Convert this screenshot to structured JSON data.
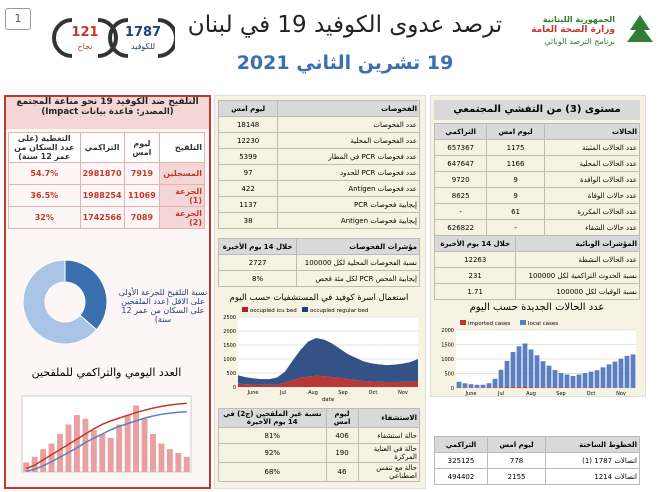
{
  "header": {
    "page_number": "1",
    "title": "ترصد عدوى الكوفيد 19 في لبنان",
    "date": "19 تشرين الثاني 2021",
    "logo_lines": [
      "الجمهورية اللبنانية",
      "وزارة الصحة العامة",
      "برنامج الترصد الوبائي"
    ],
    "badges": [
      {
        "value": "121",
        "label": "نجاح"
      },
      {
        "value": "1787",
        "label": "للكوفيد"
      }
    ]
  },
  "vaccination": {
    "title": "التلقيح ضد الكوفيد 19 نحو مناعة المجتمع",
    "source": "(المصدر: قاعدة بيانات Impact)",
    "table": {
      "columns": [
        "التلقيح",
        "ليوم امس",
        "التراكمي",
        "التغطية (على عدد السكان من عمر 12 سنة)"
      ],
      "rows": [
        [
          "المسجلين",
          "7919",
          "2981870",
          "54.7%"
        ],
        [
          "الجرعة (1)",
          "11069",
          "1988254",
          "36.5%"
        ],
        [
          "الجرعة (2)",
          "7089",
          "1742566",
          "32%"
        ]
      ]
    },
    "donut": {
      "type": "pie",
      "values": [
        36.5,
        63.5
      ],
      "colors": [
        "#3a6fb0",
        "#a9c4e4"
      ]
    },
    "donut_caption": "نسبة التلقيح للجرعة الأولى على الاقل (عدد الملقحين على السكان من عمر 12 سنة)",
    "chart_title": "العدد اليومي والتراكمي للملقحين",
    "chart": {
      "type": "bar-line",
      "ylim": [
        0,
        40000
      ],
      "y2lim": [
        0,
        2200000
      ],
      "bars": {
        "color": "#e8a0a0",
        "values": [
          5000,
          8000,
          12000,
          15000,
          20000,
          25000,
          30000,
          28000,
          22000,
          20000,
          18000,
          25000,
          30000,
          35000,
          28000,
          20000,
          15000,
          12000,
          10000,
          8000
        ]
      },
      "lines": [
        {
          "color": "#c0392b",
          "values": [
            100000,
            200000,
            350000,
            500000,
            650000,
            800000,
            950000,
            1100000,
            1250000,
            1380000,
            1480000,
            1560000,
            1640000,
            1720000,
            1790000,
            1850000,
            1900000,
            1940000,
            1970000,
            1988254
          ]
        },
        {
          "color": "#5b7fc0",
          "values": [
            20000,
            80000,
            180000,
            300000,
            430000,
            560000,
            700000,
            850000,
            980000,
            1100000,
            1220000,
            1320000,
            1400000,
            1480000,
            1560000,
            1620000,
            1670000,
            1705000,
            1730000,
            1742566
          ]
        }
      ]
    }
  },
  "tests": {
    "columns": [
      "الفحوصات",
      "ليوم امس"
    ],
    "rows": [
      [
        "عدد الفحوصات",
        "18148"
      ],
      [
        "عدد الفحوصات المحلية",
        "12230"
      ],
      [
        "عدد فحوصات PCR في المطار",
        "5399"
      ],
      [
        "عدد فحوصات PCR للحدود",
        "97"
      ],
      [
        "عدد فحوصات Antigen",
        "422"
      ],
      [
        "إيجابية فحوصات PCR",
        "1137"
      ],
      [
        "إيجابية فحوصات Antigen",
        "38"
      ]
    ]
  },
  "test_indicators": {
    "columns": [
      "مؤشرات الفحوصات",
      "خلال 14 يوم الأخيرة"
    ],
    "rows": [
      [
        "نسبة الفحوصات المحلية لكل 100000",
        "2727"
      ],
      [
        "إيجابية الفحص PCR لكل مئة فحص",
        "8%"
      ]
    ]
  },
  "hospital_chart": {
    "type": "stacked-area",
    "title": "استعمال اسرة كوفيد في المستشفيات حسب اليوم",
    "x_labels": [
      "June",
      "Jul",
      "Aug",
      "Sep",
      "Oct",
      "Nov"
    ],
    "x_label": "date",
    "ylim": [
      0,
      2500
    ],
    "yticks": [
      0,
      500,
      1000,
      1500,
      2000,
      2500
    ],
    "series": [
      {
        "name": "occupied icu bed",
        "color": "#b22222",
        "values": [
          120,
          100,
          90,
          80,
          80,
          90,
          150,
          250,
          330,
          380,
          400,
          390,
          360,
          320,
          280,
          250,
          220,
          200,
          190,
          180,
          180,
          185,
          190,
          200
        ]
      },
      {
        "name": "occupied regular bed",
        "color": "#1f3f7a",
        "values": [
          300,
          250,
          220,
          200,
          200,
          250,
          400,
          700,
          1000,
          1250,
          1350,
          1300,
          1200,
          1050,
          900,
          800,
          700,
          650,
          620,
          600,
          620,
          650,
          700,
          800
        ]
      }
    ]
  },
  "hospitalization": {
    "columns": [
      "الاستشفاء",
      "ليوم امس",
      "نسبة غير الملقحين (ج2) في 14 يوم الأخيرة"
    ],
    "rows": [
      [
        "حالة استشفاء",
        "406",
        "81%"
      ],
      [
        "حالة في العناية المركزة",
        "190",
        "92%"
      ],
      [
        "حالة مع تنفس اصطناعي",
        "46",
        "68%"
      ]
    ]
  },
  "outbreak": {
    "title": "مستوى (3) من التفشي المجتمعي",
    "cases": {
      "columns": [
        "الحالات",
        "ليوم امس",
        "التراكمي"
      ],
      "rows": [
        [
          "عدد الحالات المثبتة",
          "1175",
          "657367"
        ],
        [
          "عدد الحالات المحلية",
          "1166",
          "647647"
        ],
        [
          "عدد الحالات الوافدة",
          "9",
          "9720"
        ],
        [
          "عدد حالات الوفاة",
          "9",
          "8625"
        ],
        [
          "عدد الحالات المكررة",
          "61",
          "-"
        ],
        [
          "عدد حالات الشفاء",
          "-",
          "626822"
        ]
      ]
    },
    "indicators": {
      "columns": [
        "المؤشرات الوبائية",
        "خلال 14 يوم الأخيرة"
      ],
      "rows": [
        [
          "عدد الحالات النشطة",
          "12263"
        ],
        [
          "نسبة الحدوث التراكمية لكل 100000",
          "231"
        ],
        [
          "نسبة الوفيات لكل 100000",
          "1.71"
        ]
      ]
    }
  },
  "cases_chart": {
    "type": "stacked-bar",
    "title": "عدد الحالات الجديدة حسب اليوم",
    "x_labels": [
      "June",
      "Jul",
      "Aug",
      "Sep",
      "Oct",
      "Nov"
    ],
    "ylim": [
      0,
      2000
    ],
    "yticks": [
      0,
      500,
      1000,
      1500,
      2000
    ],
    "series": [
      {
        "name": "imported cases",
        "color": "#c0392b",
        "values": [
          15,
          12,
          10,
          10,
          12,
          15,
          20,
          30,
          35,
          40,
          40,
          35,
          30,
          28,
          25,
          22,
          20,
          18,
          16,
          15,
          15,
          14,
          14,
          13,
          12,
          12,
          11,
          10,
          10,
          9
        ]
      },
      {
        "name": "local cases",
        "color": "#5b7fc0",
        "values": [
          200,
          150,
          120,
          100,
          100,
          150,
          300,
          600,
          900,
          1200,
          1400,
          1500,
          1300,
          1100,
          900,
          750,
          600,
          500,
          450,
          400,
          450,
          500,
          550,
          600,
          700,
          800,
          900,
          1000,
          1100,
          1150
        ]
      }
    ]
  },
  "hotlines": {
    "columns": [
      "الخطوط الساخنة",
      "ليوم امس",
      "التراكمي"
    ],
    "rows": [
      [
        "اتصالات 1787 (1)",
        "778",
        "325125"
      ],
      [
        "اتصالات 1214",
        "2155",
        "494402"
      ]
    ]
  }
}
